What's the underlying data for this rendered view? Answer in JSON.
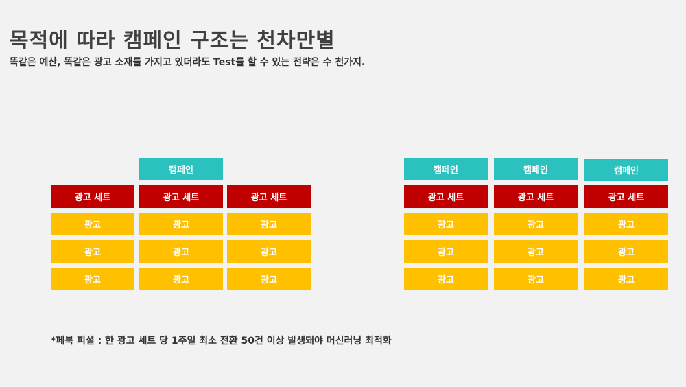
{
  "title": "목적에 따라 캠페인 구조는 천차만별",
  "subtitle": "똑같은 예산, 똑같은 광고 소재를 가지고 있더라도 Test를 할 수 있는 전략은 수 천가지.",
  "footnote": "*페북 피셜 : 한 광고 세트 당 1주일 최소 전환 50건 이상 발생돼야 머신러닝 최적화",
  "colors": {
    "campaign": "#2bc1be",
    "adset": "#c00000",
    "ad": "#ffc000",
    "background": "#f2f2f2"
  },
  "left_structure": {
    "campaign_label": "캠페인",
    "adsets": [
      {
        "label": "광고 세트",
        "ads": [
          "광고",
          "광고",
          "광고"
        ]
      },
      {
        "label": "광고 세트",
        "ads": [
          "광고",
          "광고",
          "광고"
        ]
      },
      {
        "label": "광고 세트",
        "ads": [
          "광고",
          "광고",
          "광고"
        ]
      }
    ]
  },
  "right_structure": {
    "campaigns": [
      {
        "label": "캠페인",
        "adset": "광고 세트",
        "ads": [
          "광고",
          "광고",
          "광고"
        ]
      },
      {
        "label": "캠페인",
        "adset": "광고 세트",
        "ads": [
          "광고",
          "광고",
          "광고"
        ]
      },
      {
        "label": "캠페인",
        "adset": "광고 세트",
        "ads": [
          "광고",
          "광고",
          "광고"
        ]
      }
    ]
  }
}
